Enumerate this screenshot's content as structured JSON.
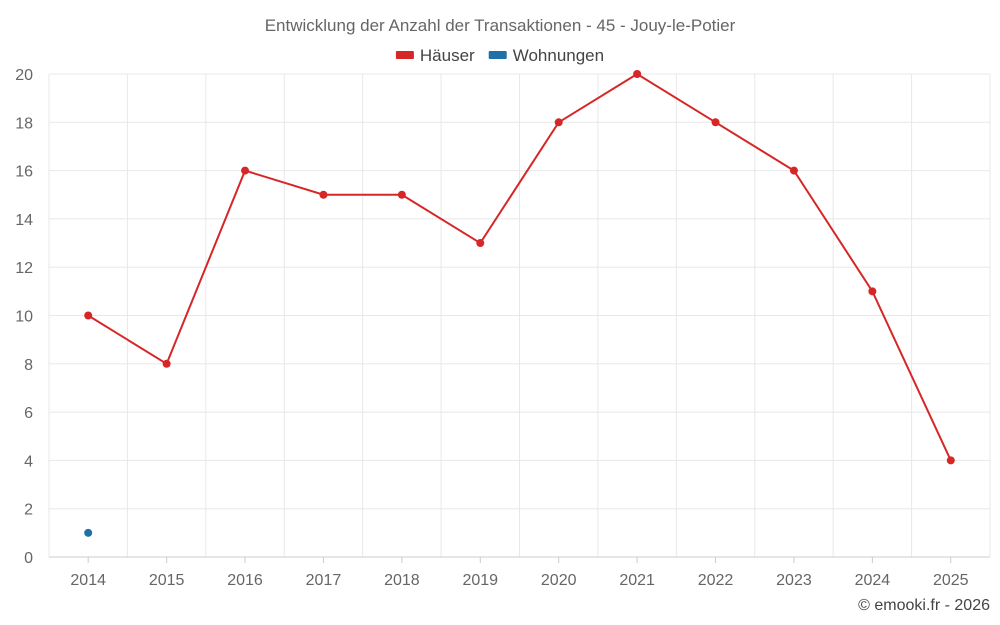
{
  "chart_data": {
    "type": "line",
    "title": "Entwicklung der Anzahl der Transaktionen - 45 - Jouy-le-Potier",
    "categories": [
      "2014",
      "2015",
      "2016",
      "2017",
      "2018",
      "2019",
      "2020",
      "2021",
      "2022",
      "2023",
      "2024",
      "2025"
    ],
    "series": [
      {
        "name": "Häuser",
        "color": "#d62728",
        "values": [
          10,
          8,
          16,
          15,
          15,
          13,
          18,
          20,
          18,
          16,
          11,
          4
        ]
      },
      {
        "name": "Wohnungen",
        "color": "#1f6fa8",
        "values": [
          1,
          null,
          null,
          null,
          null,
          null,
          null,
          null,
          null,
          null,
          null,
          null
        ]
      }
    ],
    "ylim": [
      0,
      20
    ],
    "yticks": [
      0,
      2,
      4,
      6,
      8,
      10,
      12,
      14,
      16,
      18,
      20
    ],
    "grid": true,
    "legend": "top-center",
    "credit": "© emooki.fr - 2026"
  }
}
